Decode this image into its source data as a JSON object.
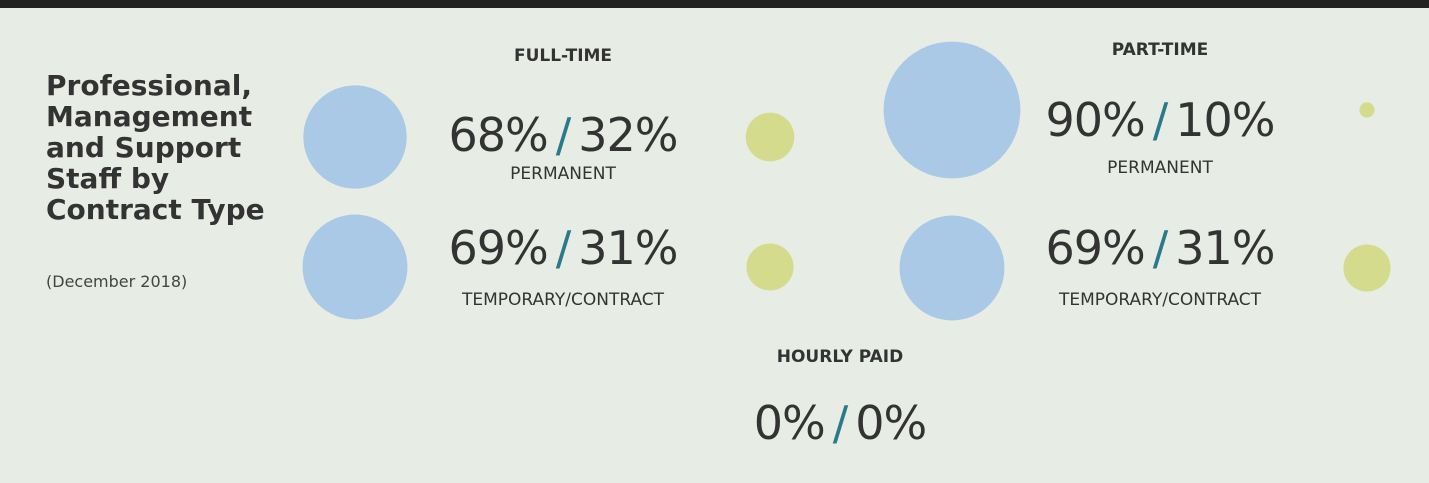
{
  "title": "Professional, Management and Support Staff by Contract Type",
  "subtitle": "(December 2018)",
  "separator": "/",
  "colors": [
    "#a9c9e7",
    "#d5db8c"
  ],
  "groups": [
    {
      "name": "FULL-TIME",
      "rows": [
        {
          "label": "PERMANENT",
          "values": [
            68,
            32
          ],
          "value_labels": [
            "68%",
            "32%"
          ]
        },
        {
          "label": "TEMPORARY/CONTRACT",
          "values": [
            69,
            31
          ],
          "value_labels": [
            "69%",
            "31%"
          ]
        }
      ]
    },
    {
      "name": "PART-TIME",
      "rows": [
        {
          "label": "PERMANENT",
          "values": [
            90,
            10
          ],
          "value_labels": [
            "90%",
            "10%"
          ]
        },
        {
          "label": "TEMPORARY/CONTRACT",
          "values": [
            69,
            31
          ],
          "value_labels": [
            "69%",
            "31%"
          ]
        }
      ]
    },
    {
      "name": "HOURLY PAID",
      "rows": [
        {
          "values": [
            0,
            0
          ],
          "value_labels": [
            "0%",
            "0%"
          ]
        }
      ]
    }
  ]
}
